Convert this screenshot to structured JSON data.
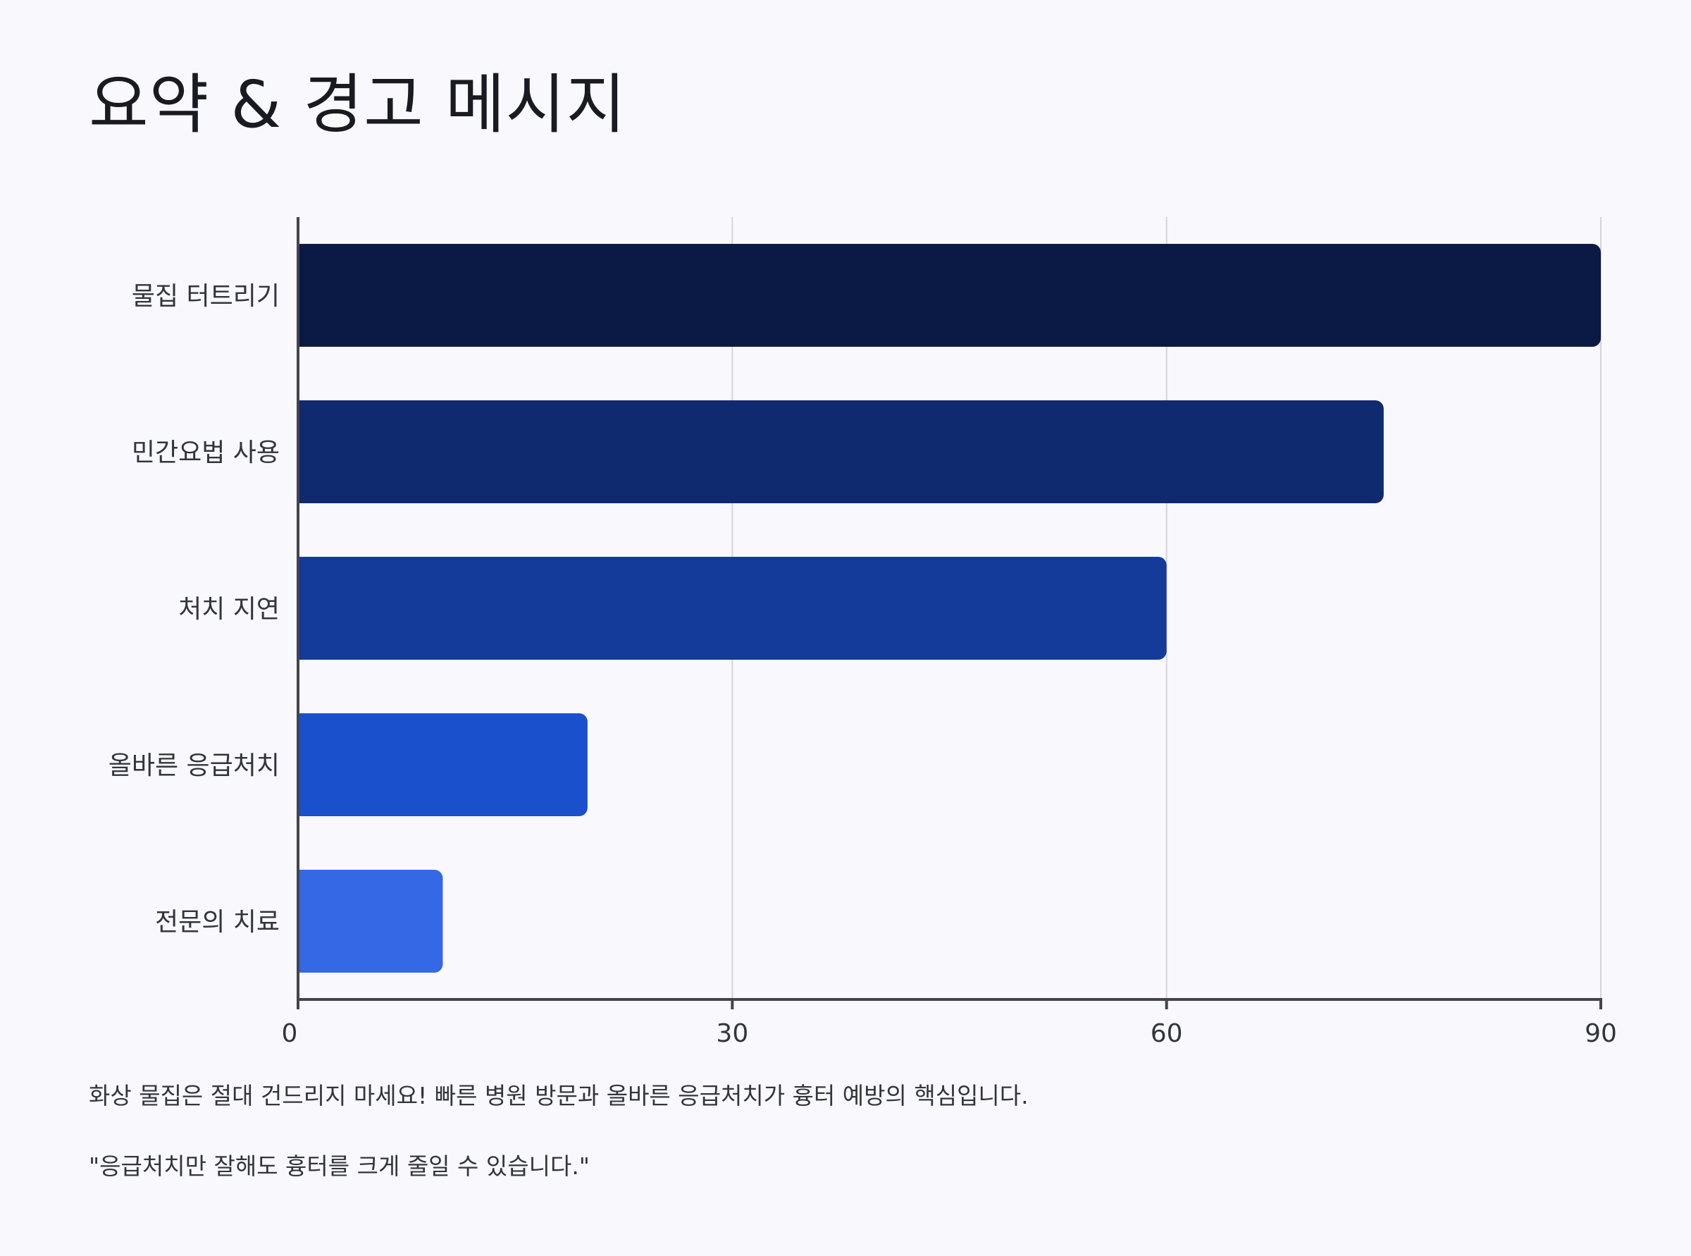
{
  "title": "요약 & 경고 메시지",
  "chart_data": {
    "type": "bar",
    "orientation": "horizontal",
    "categories": [
      "물집 터트리기",
      "민간요법 사용",
      "처치 지연",
      "올바른 응급처치",
      "전문의 치료"
    ],
    "values": [
      90,
      75,
      60,
      20,
      10
    ],
    "colors": [
      "#0a1a44",
      "#0f2a6e",
      "#143a9a",
      "#1a50cc",
      "#3468e4"
    ],
    "xlim": [
      0,
      90
    ],
    "xticks": [
      0,
      30,
      60,
      90
    ],
    "xtick_labels": [
      "0",
      "30",
      "60",
      "90"
    ],
    "grid": true
  },
  "captions": [
    "화상 물집은 절대 건드리지 마세요! 빠른 병원 방문과 올바른 응급처치가 흉터 예방의 핵심입니다.",
    "\"응급처치만 잘해도 흉터를 크게 줄일 수 있습니다.\""
  ]
}
